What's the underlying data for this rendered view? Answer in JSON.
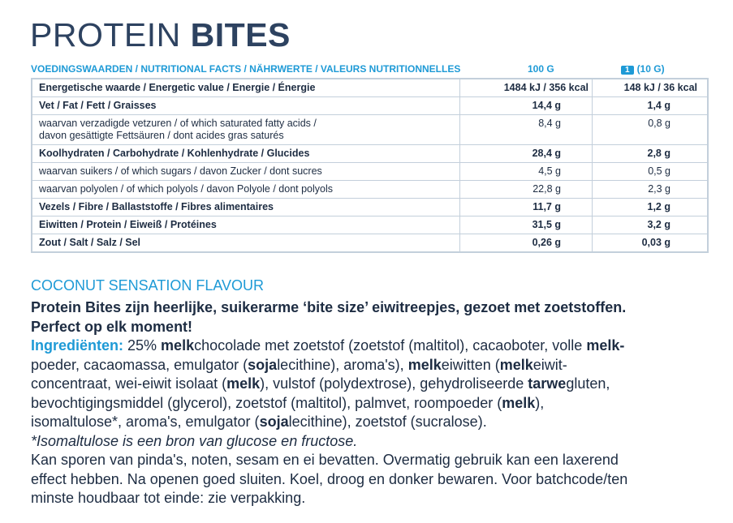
{
  "title": {
    "light": "PROTEIN",
    "bold": "BITES"
  },
  "table": {
    "header": {
      "label": "VOEDINGSWAARDEN / NUTRITIONAL FACTS / NÄHRWERTE / VALEURS NUTRITIONNELLES",
      "col1": "100 G",
      "badge": "1",
      "col2": "(10 G)"
    },
    "rows": [
      {
        "label": [
          "Energetische waarde / Energetic value / Energie / Énergie"
        ],
        "v1": "1484 kJ / 356 kcal",
        "v2": "148 kJ / 36 kcal",
        "bold": true
      },
      {
        "label": [
          "Vet / Fat / Fett / Graisses"
        ],
        "v1": "14,4 g",
        "v2": "1,4 g",
        "bold": true
      },
      {
        "label": [
          "waarvan verzadigde vetzuren / of which saturated fatty acids /",
          "davon gesättigte Fettsäuren / dont acides gras saturés"
        ],
        "v1": "8,4 g",
        "v2": "0,8 g",
        "bold": false
      },
      {
        "label": [
          "Koolhydraten / Carbohydrate / Kohlenhydrate / Glucides"
        ],
        "v1": "28,4 g",
        "v2": "2,8 g",
        "bold": true
      },
      {
        "label": [
          "waarvan suikers / of which sugars / davon Zucker / dont sucres"
        ],
        "v1": "4,5 g",
        "v2": "0,5 g",
        "bold": false
      },
      {
        "label": [
          "waarvan polyolen / of which polyols / davon Polyole / dont polyols"
        ],
        "v1": "22,8 g",
        "v2": "2,3 g",
        "bold": false
      },
      {
        "label": [
          "Vezels / Fibre / Ballaststoffe / Fibres alimentaires"
        ],
        "v1": "11,7 g",
        "v2": "1,2 g",
        "bold": true
      },
      {
        "label": [
          "Eiwitten / Protein / Eiweiß / Protéines"
        ],
        "v1": "31,5 g",
        "v2": "3,2 g",
        "bold": true
      },
      {
        "label": [
          "Zout / Salt / Salz / Sel"
        ],
        "v1": "0,26 g",
        "v2": "0,03 g",
        "bold": true
      }
    ]
  },
  "flavour": "COCONUT SENSATION FLAVOUR",
  "body": {
    "lines": [
      [
        {
          "text": "Protein Bites zijn heerlijke, suikerarme ‘bite size’ eiwitreepjes, gezoet met zoetstoffen.",
          "style": "bold"
        }
      ],
      [
        {
          "text": "Perfect op elk moment!",
          "style": "bold"
        }
      ],
      [
        {
          "text": "Ingrediënten:",
          "style": "label"
        },
        {
          "text": " 25% ",
          "style": "normal"
        },
        {
          "text": "melk",
          "style": "bold"
        },
        {
          "text": "chocolade met zoetstof (zoetstof (maltitol), cacaoboter, volle ",
          "style": "normal"
        },
        {
          "text": "melk-",
          "style": "bold"
        }
      ],
      [
        {
          "text": "poeder, cacaomassa, emulgator (",
          "style": "normal"
        },
        {
          "text": "soja",
          "style": "bold"
        },
        {
          "text": "lecithine), aroma's), ",
          "style": "normal"
        },
        {
          "text": "melk",
          "style": "bold"
        },
        {
          "text": "eiwitten (",
          "style": "normal"
        },
        {
          "text": "melk",
          "style": "bold"
        },
        {
          "text": "eiwit-",
          "style": "normal"
        }
      ],
      [
        {
          "text": "concentraat, wei-eiwit isolaat (",
          "style": "normal"
        },
        {
          "text": "melk",
          "style": "bold"
        },
        {
          "text": "), vulstof (polydextrose), gehydroliseerde ",
          "style": "normal"
        },
        {
          "text": "tarwe",
          "style": "bold"
        },
        {
          "text": "gluten,",
          "style": "normal"
        }
      ],
      [
        {
          "text": "bevochtigingsmiddel (glycerol), zoetstof (maltitol), palmvet, roompoeder (",
          "style": "normal"
        },
        {
          "text": "melk",
          "style": "bold"
        },
        {
          "text": "),",
          "style": "normal"
        }
      ],
      [
        {
          "text": "isomaltulose*, aroma's, emulgator (",
          "style": "normal"
        },
        {
          "text": "soja",
          "style": "bold"
        },
        {
          "text": "lecithine), zoetstof (sucralose).",
          "style": "normal"
        }
      ],
      [
        {
          "text": "*Isomaltulose is een bron van glucose en fructose.",
          "style": "italic"
        }
      ],
      [
        {
          "text": "Kan sporen van pinda's, noten, sesam en ei bevatten. Overmatig gebruik kan een laxerend",
          "style": "normal"
        }
      ],
      [
        {
          "text": "effect hebben. Na openen goed sluiten. Koel, droog en donker bewaren. Voor batchcode/ten",
          "style": "normal"
        }
      ],
      [
        {
          "text": "minste houdbaar tot einde: zie verpakking.",
          "style": "normal"
        }
      ]
    ]
  }
}
